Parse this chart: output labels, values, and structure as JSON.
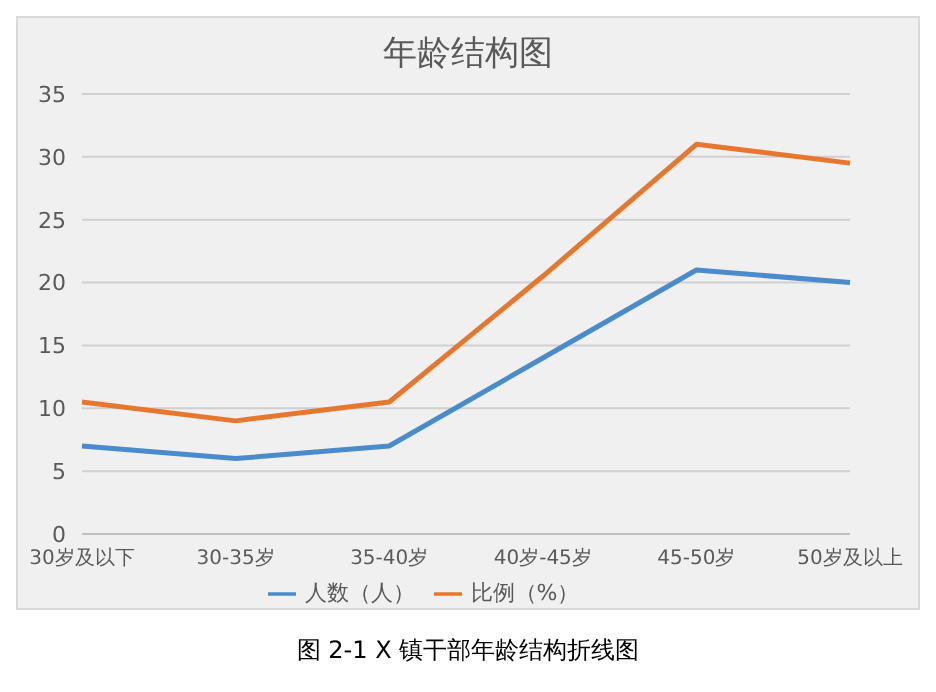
{
  "chart_data": {
    "type": "line",
    "title": "年龄结构图",
    "categories": [
      "30岁及以下",
      "30-35岁",
      "35-40岁",
      "40岁-45岁",
      "45-50岁",
      "50岁及以上"
    ],
    "series": [
      {
        "name": "人数（人）",
        "color": "#4a8ccb",
        "values": [
          7,
          6,
          7,
          14,
          21,
          20
        ]
      },
      {
        "name": "比例（%）",
        "color": "#e8772e",
        "values": [
          10.5,
          9,
          10.5,
          20.5,
          31,
          29.5
        ]
      }
    ],
    "ylim": [
      0,
      35
    ],
    "yticks": [
      0,
      5,
      10,
      15,
      20,
      25,
      30,
      35
    ],
    "grid": "y",
    "legend": "bottom",
    "marker": "none",
    "line_style": "solid",
    "annotations": [
      "图 2-1 X 镇干部年龄结构折线图"
    ]
  }
}
